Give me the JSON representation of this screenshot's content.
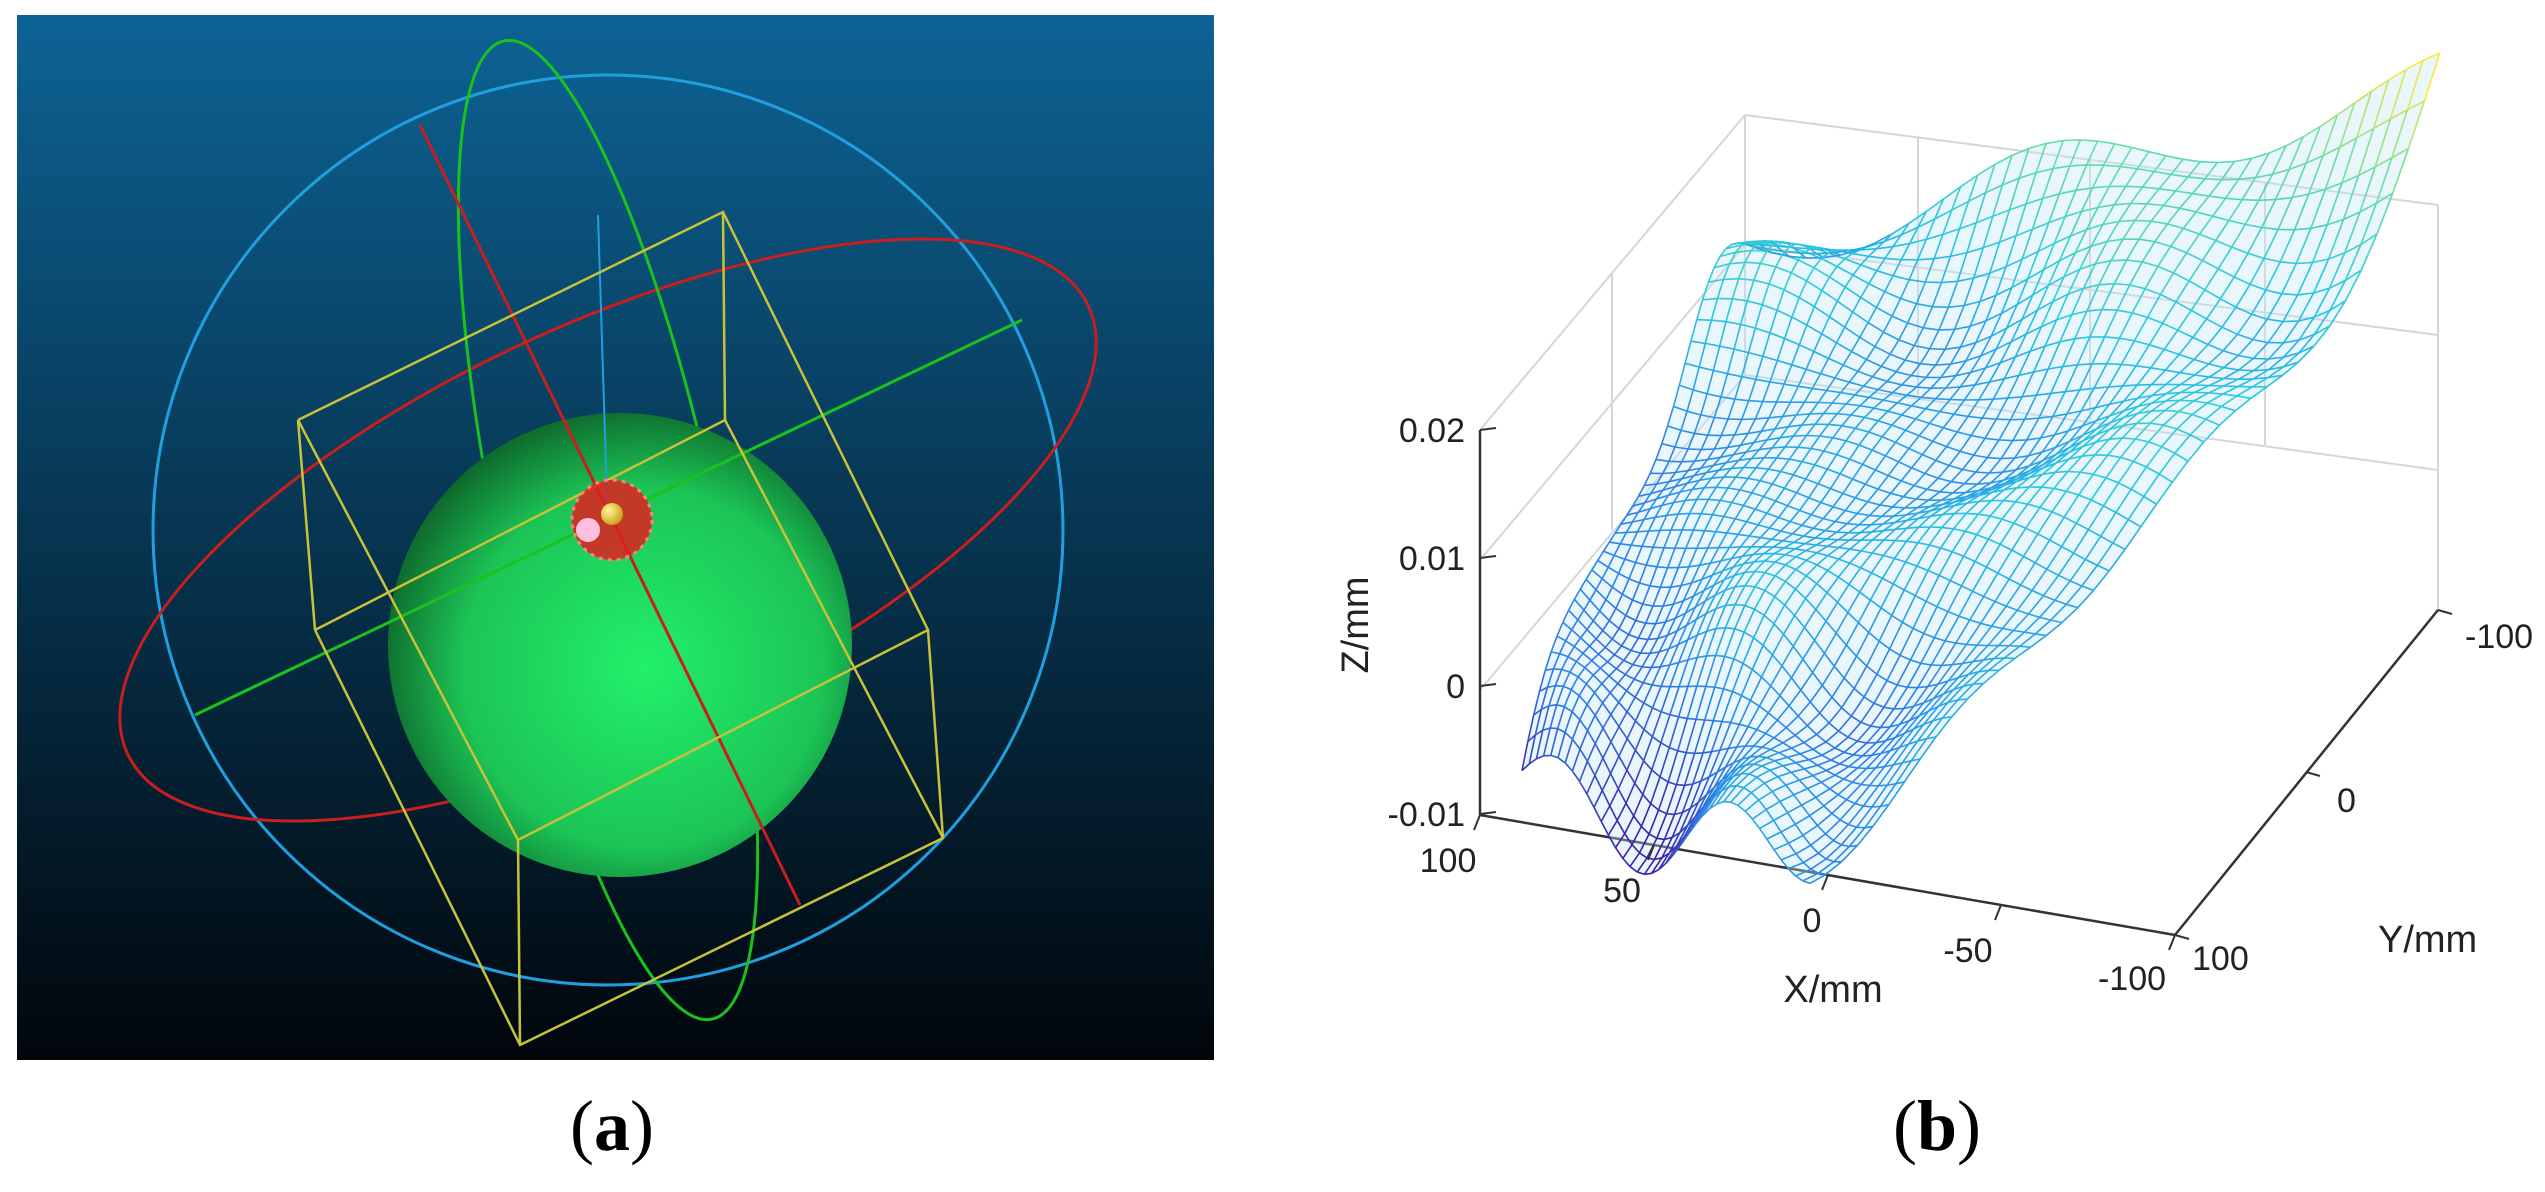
{
  "panels": [
    {
      "label_open": "(",
      "label_letter": "a",
      "label_close": ")",
      "scene": {
        "background_top": "#0d6395",
        "background_bottom": "#01060b",
        "sphere_color": "#22f06a",
        "big_circle_color": "#1f9fe0",
        "red_ellipse_color": "#c81e1e",
        "green_ellipse_color": "#19c21e",
        "box_color": "#c8c23a",
        "marker_color": "#e01e1e",
        "probe_color": "#e8d21a"
      }
    },
    {
      "label_open": "(",
      "label_letter": "b",
      "label_close": ")",
      "surface_colors": [
        "#3e1fa8",
        "#2e7fe8",
        "#28c8e0",
        "#70e0a0",
        "#ffea3a"
      ],
      "axes": {
        "z": {
          "label": "Z/mm",
          "ticks": [
            "0.02",
            "0.01",
            "0",
            "-0.01"
          ]
        },
        "x": {
          "label": "X/mm",
          "ticks": [
            "100",
            "50",
            "0",
            "-50",
            "-100"
          ]
        },
        "y": {
          "label": "Y/mm",
          "ticks": [
            "-100",
            "0",
            "100"
          ]
        }
      }
    }
  ]
}
